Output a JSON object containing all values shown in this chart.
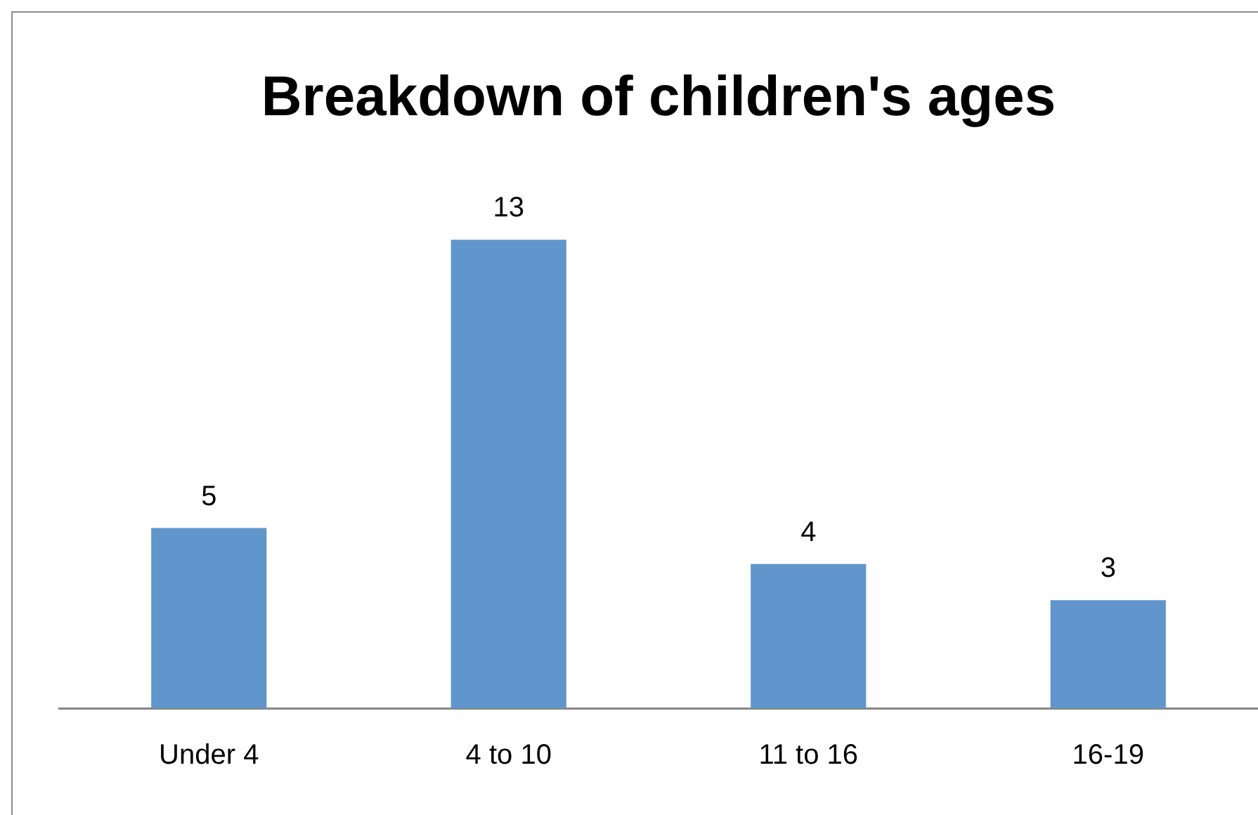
{
  "chart_data": {
    "type": "bar",
    "title": "Breakdown of children's ages",
    "categories": [
      "Under 4",
      "4 to 10",
      "11 to 16",
      "16-19"
    ],
    "values": [
      5,
      13,
      4,
      3
    ],
    "color": "#6096cb",
    "data_labels": true,
    "grid": false,
    "legend": false
  }
}
